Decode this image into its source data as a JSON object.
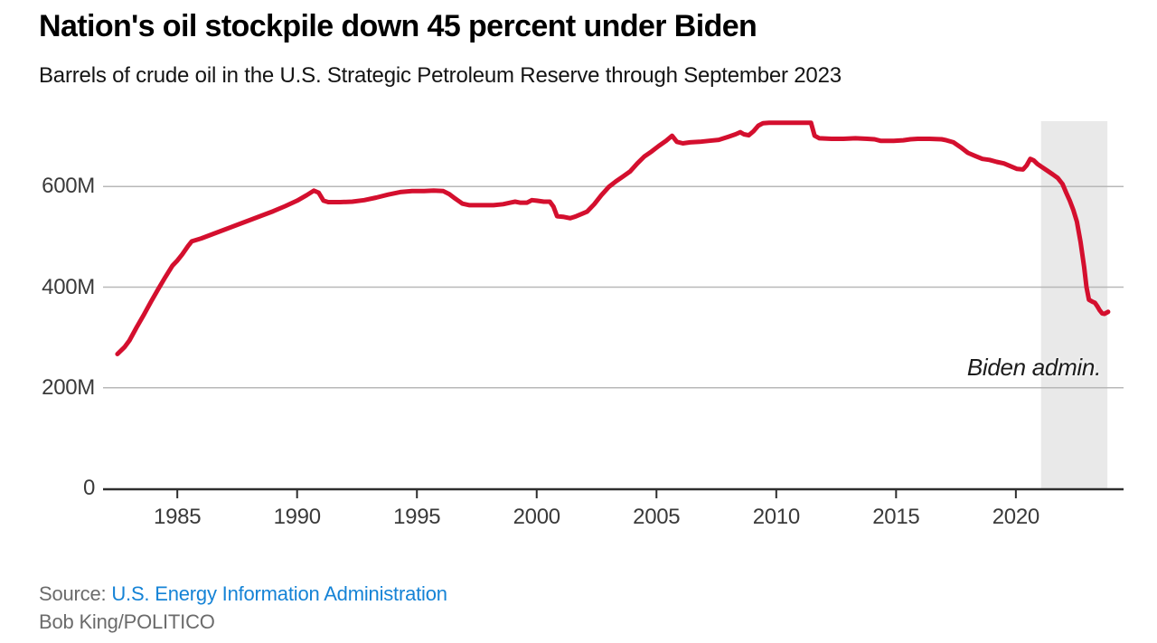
{
  "header": {
    "title": "Nation's oil stockpile down 45 percent under Biden",
    "subtitle": "Barrels of crude oil in the U.S. Strategic Petroleum Reserve through September 2023"
  },
  "annotation": {
    "biden_label": "Biden admin."
  },
  "footer": {
    "source_prefix": "Source: ",
    "source_link": "U.S. Energy Information Administration",
    "credit": "Bob King/POLITICO"
  },
  "colors": {
    "line_red": "#d40f2e",
    "shaded_band": "#e9e9e9",
    "gridline": "#b8b8b8",
    "axis": "#2e2e2e",
    "tick_label": "#3a3a3a",
    "link_blue": "#1583d6",
    "source_gray": "#6b6b6b"
  },
  "chart_data": {
    "type": "line",
    "title": "Nation's oil stockpile down 45 percent under Biden",
    "subtitle": "Barrels of crude oil in the U.S. Strategic Petroleum Reserve through September 2023",
    "unit": "millions of barrels",
    "grid": "horizontal",
    "x_range": [
      1981.9,
      2024.08
    ],
    "y_range": [
      0,
      730
    ],
    "x_ticks": [
      1985,
      1990,
      1995,
      2000,
      2005,
      2010,
      2015,
      2020
    ],
    "y_ticks": [
      {
        "value": 600,
        "label": "600M"
      },
      {
        "value": 400,
        "label": "400M"
      },
      {
        "value": 200,
        "label": "200M"
      },
      {
        "value": 0,
        "label": "0"
      }
    ],
    "shaded_region": {
      "label": "Biden admin.",
      "x_start": 2021.05,
      "x_end": 2023.82
    },
    "series": [
      {
        "name": "U.S. Strategic Petroleum Reserve crude oil stocks (million barrels)",
        "points": [
          [
            1982.5,
            267
          ],
          [
            1982.8,
            281
          ],
          [
            1983.0,
            294
          ],
          [
            1983.3,
            320
          ],
          [
            1983.6,
            345
          ],
          [
            1983.9,
            371
          ],
          [
            1984.2,
            396
          ],
          [
            1984.5,
            420
          ],
          [
            1984.8,
            443
          ],
          [
            1985.0,
            453
          ],
          [
            1985.2,
            465
          ],
          [
            1985.45,
            482
          ],
          [
            1985.6,
            491
          ],
          [
            1986.0,
            497
          ],
          [
            1986.5,
            506
          ],
          [
            1987.0,
            515
          ],
          [
            1987.5,
            524
          ],
          [
            1988.0,
            533
          ],
          [
            1988.5,
            542
          ],
          [
            1989.0,
            551
          ],
          [
            1989.5,
            561
          ],
          [
            1990.0,
            572
          ],
          [
            1990.4,
            583
          ],
          [
            1990.7,
            592
          ],
          [
            1990.9,
            588
          ],
          [
            1991.1,
            572
          ],
          [
            1991.3,
            569
          ],
          [
            1991.8,
            569
          ],
          [
            1992.3,
            570
          ],
          [
            1992.8,
            573
          ],
          [
            1993.3,
            578
          ],
          [
            1993.8,
            584
          ],
          [
            1994.3,
            589
          ],
          [
            1994.8,
            591
          ],
          [
            1995.3,
            591
          ],
          [
            1995.7,
            592
          ],
          [
            1996.1,
            591
          ],
          [
            1996.35,
            585
          ],
          [
            1996.6,
            576
          ],
          [
            1996.9,
            566
          ],
          [
            1997.2,
            563
          ],
          [
            1997.7,
            563
          ],
          [
            1998.2,
            563
          ],
          [
            1998.6,
            565
          ],
          [
            1998.9,
            568
          ],
          [
            1999.1,
            570
          ],
          [
            1999.3,
            568
          ],
          [
            1999.6,
            568
          ],
          [
            1999.8,
            573
          ],
          [
            2000.0,
            572
          ],
          [
            2000.3,
            570
          ],
          [
            2000.55,
            570
          ],
          [
            2000.7,
            560
          ],
          [
            2000.85,
            541
          ],
          [
            2001.1,
            540
          ],
          [
            2001.4,
            537
          ],
          [
            2001.65,
            541
          ],
          [
            2001.9,
            546
          ],
          [
            2002.1,
            550
          ],
          [
            2002.4,
            565
          ],
          [
            2002.7,
            583
          ],
          [
            2003.0,
            599
          ],
          [
            2003.3,
            610
          ],
          [
            2003.6,
            620
          ],
          [
            2003.9,
            630
          ],
          [
            2004.2,
            646
          ],
          [
            2004.5,
            660
          ],
          [
            2004.8,
            670
          ],
          [
            2005.1,
            681
          ],
          [
            2005.4,
            691
          ],
          [
            2005.65,
            701
          ],
          [
            2005.85,
            689
          ],
          [
            2006.1,
            686
          ],
          [
            2006.4,
            688
          ],
          [
            2006.8,
            689
          ],
          [
            2007.2,
            691
          ],
          [
            2007.6,
            693
          ],
          [
            2008.0,
            699
          ],
          [
            2008.3,
            704
          ],
          [
            2008.5,
            708
          ],
          [
            2008.65,
            704
          ],
          [
            2008.85,
            702
          ],
          [
            2009.05,
            710
          ],
          [
            2009.25,
            721
          ],
          [
            2009.45,
            726
          ],
          [
            2009.7,
            727
          ],
          [
            2010.3,
            727
          ],
          [
            2010.9,
            727
          ],
          [
            2011.45,
            727
          ],
          [
            2011.6,
            701
          ],
          [
            2011.8,
            696
          ],
          [
            2012.3,
            695
          ],
          [
            2012.8,
            695
          ],
          [
            2013.3,
            696
          ],
          [
            2013.8,
            695
          ],
          [
            2014.1,
            694
          ],
          [
            2014.35,
            691
          ],
          [
            2014.9,
            691
          ],
          [
            2015.3,
            692
          ],
          [
            2015.6,
            694
          ],
          [
            2015.9,
            695
          ],
          [
            2016.4,
            695
          ],
          [
            2016.9,
            694
          ],
          [
            2017.1,
            692
          ],
          [
            2017.4,
            688
          ],
          [
            2017.7,
            678
          ],
          [
            2018.0,
            667
          ],
          [
            2018.3,
            661
          ],
          [
            2018.6,
            655
          ],
          [
            2018.9,
            653
          ],
          [
            2019.2,
            649
          ],
          [
            2019.5,
            646
          ],
          [
            2019.8,
            640
          ],
          [
            2020.05,
            635
          ],
          [
            2020.3,
            634
          ],
          [
            2020.45,
            642
          ],
          [
            2020.6,
            655
          ],
          [
            2020.75,
            652
          ],
          [
            2020.9,
            645
          ],
          [
            2021.05,
            640
          ],
          [
            2021.3,
            632
          ],
          [
            2021.55,
            624
          ],
          [
            2021.75,
            617
          ],
          [
            2021.95,
            605
          ],
          [
            2022.1,
            588
          ],
          [
            2022.25,
            572
          ],
          [
            2022.4,
            553
          ],
          [
            2022.55,
            530
          ],
          [
            2022.7,
            490
          ],
          [
            2022.85,
            440
          ],
          [
            2022.95,
            400
          ],
          [
            2023.05,
            375
          ],
          [
            2023.2,
            371
          ],
          [
            2023.3,
            369
          ],
          [
            2023.4,
            362
          ],
          [
            2023.5,
            354
          ],
          [
            2023.6,
            348
          ],
          [
            2023.7,
            347
          ],
          [
            2023.78,
            349
          ],
          [
            2023.85,
            351
          ]
        ]
      }
    ]
  }
}
